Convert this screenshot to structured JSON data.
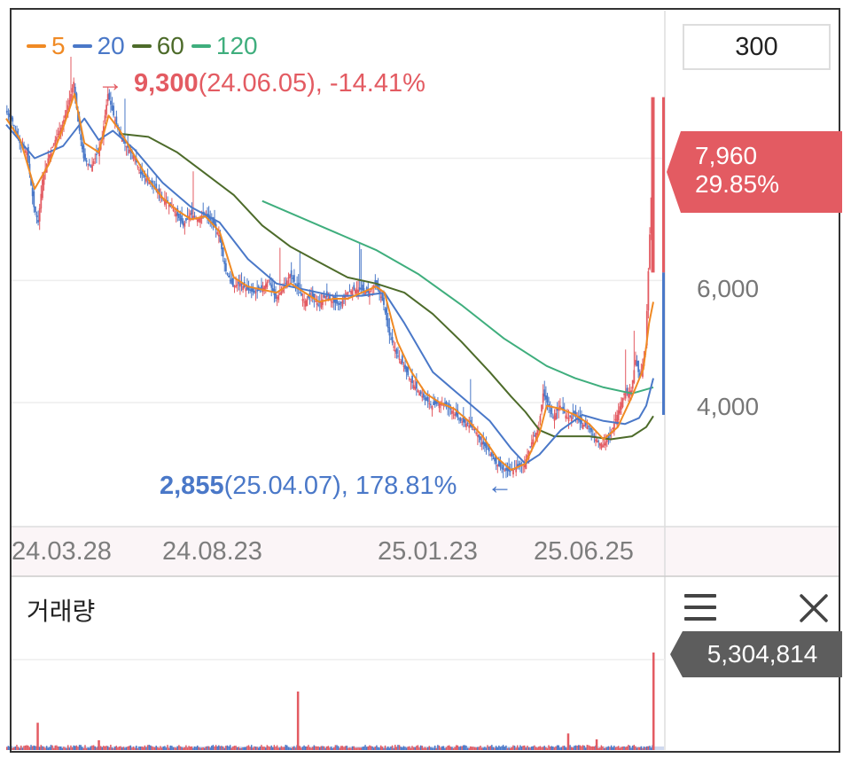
{
  "chart_data": {
    "type": "candlestick",
    "legend": [
      {
        "label": "5",
        "color": "#f08a24"
      },
      {
        "label": "20",
        "color": "#4a78c8"
      },
      {
        "label": "60",
        "color": "#4d6b2a"
      },
      {
        "label": "120",
        "color": "#3fae7d"
      }
    ],
    "ylim": [
      2000,
      10300
    ],
    "y_ticks": [
      "6,000",
      "4,000"
    ],
    "x_ticks": [
      "24.03.28",
      "24.08.23",
      "25.01.23",
      "25.06.25"
    ],
    "high_annotation": {
      "arrow": "→",
      "value": "9,300",
      "date": "(24.06.05)",
      "pct": ", -14.41%"
    },
    "low_annotation": {
      "arrow": "←",
      "value": "2,855",
      "date": "(25.04.07)",
      "pct": ", 178.81%"
    },
    "current_price": {
      "price": "7,960",
      "change": "29.85%"
    },
    "close_path": [
      [
        0,
        8780
      ],
      [
        5,
        8600
      ],
      [
        10,
        8250
      ],
      [
        15,
        8100
      ],
      [
        20,
        7200
      ],
      [
        23,
        6950
      ],
      [
        26,
        7650
      ],
      [
        30,
        8000
      ],
      [
        35,
        8300
      ],
      [
        40,
        8550
      ],
      [
        45,
        8950
      ],
      [
        48,
        9250
      ],
      [
        51,
        8600
      ],
      [
        55,
        8000
      ],
      [
        60,
        7850
      ],
      [
        65,
        8100
      ],
      [
        68,
        8350
      ],
      [
        72,
        9050
      ],
      [
        76,
        8700
      ],
      [
        80,
        8400
      ],
      [
        85,
        8200
      ],
      [
        90,
        8050
      ],
      [
        95,
        7750
      ],
      [
        100,
        7650
      ],
      [
        105,
        7500
      ],
      [
        110,
        7350
      ],
      [
        115,
        7250
      ],
      [
        120,
        7100
      ],
      [
        125,
        6900
      ],
      [
        130,
        7100
      ],
      [
        135,
        7000
      ],
      [
        140,
        7100
      ],
      [
        145,
        6950
      ],
      [
        150,
        6750
      ],
      [
        155,
        6150
      ],
      [
        160,
        5900
      ],
      [
        165,
        5950
      ],
      [
        170,
        5850
      ],
      [
        175,
        5800
      ],
      [
        180,
        5850
      ],
      [
        185,
        6000
      ],
      [
        190,
        5700
      ],
      [
        195,
        5850
      ],
      [
        200,
        6100
      ],
      [
        205,
        5900
      ],
      [
        210,
        5650
      ],
      [
        215,
        5750
      ],
      [
        220,
        5600
      ],
      [
        225,
        5750
      ],
      [
        230,
        5650
      ],
      [
        235,
        5600
      ],
      [
        240,
        5800
      ],
      [
        245,
        5850
      ],
      [
        250,
        5850
      ],
      [
        255,
        5800
      ],
      [
        260,
        5950
      ],
      [
        263,
        5800
      ],
      [
        266,
        5600
      ],
      [
        270,
        5100
      ],
      [
        275,
        4800
      ],
      [
        280,
        4600
      ],
      [
        285,
        4350
      ],
      [
        290,
        4200
      ],
      [
        295,
        4050
      ],
      [
        300,
        3950
      ],
      [
        305,
        4000
      ],
      [
        310,
        3950
      ],
      [
        315,
        3850
      ],
      [
        320,
        3700
      ],
      [
        325,
        3650
      ],
      [
        330,
        3550
      ],
      [
        335,
        3350
      ],
      [
        340,
        3200
      ],
      [
        345,
        3000
      ],
      [
        350,
        2900
      ],
      [
        355,
        2870
      ],
      [
        360,
        2950
      ],
      [
        365,
        3000
      ],
      [
        370,
        3350
      ],
      [
        375,
        3600
      ],
      [
        378,
        4150
      ],
      [
        381,
        4000
      ],
      [
        385,
        3750
      ],
      [
        390,
        3950
      ],
      [
        395,
        3750
      ],
      [
        400,
        3800
      ],
      [
        405,
        3650
      ],
      [
        410,
        3600
      ],
      [
        415,
        3400
      ],
      [
        420,
        3300
      ],
      [
        425,
        3450
      ],
      [
        430,
        3800
      ],
      [
        435,
        4150
      ],
      [
        440,
        4200
      ],
      [
        443,
        4700
      ],
      [
        446,
        4400
      ],
      [
        450,
        4850
      ],
      [
        452,
        6150
      ],
      [
        455,
        7960
      ]
    ],
    "ma5_path": [
      [
        0,
        8650
      ],
      [
        10,
        8300
      ],
      [
        20,
        7500
      ],
      [
        30,
        7900
      ],
      [
        40,
        8500
      ],
      [
        48,
        9050
      ],
      [
        55,
        8250
      ],
      [
        65,
        8100
      ],
      [
        72,
        8700
      ],
      [
        80,
        8450
      ],
      [
        90,
        8050
      ],
      [
        100,
        7650
      ],
      [
        110,
        7350
      ],
      [
        120,
        7150
      ],
      [
        130,
        7000
      ],
      [
        140,
        7050
      ],
      [
        150,
        6800
      ],
      [
        160,
        6050
      ],
      [
        170,
        5900
      ],
      [
        180,
        5850
      ],
      [
        190,
        5800
      ],
      [
        200,
        5950
      ],
      [
        210,
        5800
      ],
      [
        220,
        5650
      ],
      [
        230,
        5700
      ],
      [
        240,
        5700
      ],
      [
        250,
        5800
      ],
      [
        260,
        5900
      ],
      [
        266,
        5800
      ],
      [
        275,
        5000
      ],
      [
        285,
        4500
      ],
      [
        295,
        4150
      ],
      [
        305,
        4000
      ],
      [
        315,
        3900
      ],
      [
        325,
        3700
      ],
      [
        335,
        3450
      ],
      [
        345,
        3100
      ],
      [
        355,
        2900
      ],
      [
        365,
        3000
      ],
      [
        375,
        3500
      ],
      [
        380,
        3950
      ],
      [
        390,
        3900
      ],
      [
        400,
        3800
      ],
      [
        410,
        3650
      ],
      [
        420,
        3400
      ],
      [
        430,
        3600
      ],
      [
        440,
        4100
      ],
      [
        448,
        4550
      ],
      [
        452,
        5300
      ],
      [
        455,
        5650
      ]
    ],
    "ma20_path": [
      [
        0,
        8550
      ],
      [
        20,
        8000
      ],
      [
        40,
        8200
      ],
      [
        55,
        8650
      ],
      [
        65,
        8300
      ],
      [
        75,
        8450
      ],
      [
        90,
        8150
      ],
      [
        110,
        7600
      ],
      [
        130,
        7200
      ],
      [
        150,
        6950
      ],
      [
        170,
        6350
      ],
      [
        190,
        5950
      ],
      [
        210,
        5850
      ],
      [
        230,
        5750
      ],
      [
        250,
        5750
      ],
      [
        266,
        5800
      ],
      [
        280,
        5300
      ],
      [
        300,
        4500
      ],
      [
        320,
        4100
      ],
      [
        340,
        3700
      ],
      [
        355,
        3250
      ],
      [
        365,
        3000
      ],
      [
        375,
        3150
      ],
      [
        390,
        3550
      ],
      [
        405,
        3800
      ],
      [
        420,
        3700
      ],
      [
        435,
        3650
      ],
      [
        445,
        3750
      ],
      [
        450,
        3950
      ],
      [
        455,
        4400
      ]
    ],
    "ma60_path": [
      [
        80,
        8400
      ],
      [
        100,
        8350
      ],
      [
        120,
        8100
      ],
      [
        140,
        7750
      ],
      [
        160,
        7400
      ],
      [
        180,
        6900
      ],
      [
        200,
        6550
      ],
      [
        220,
        6300
      ],
      [
        240,
        6050
      ],
      [
        260,
        5950
      ],
      [
        280,
        5800
      ],
      [
        300,
        5450
      ],
      [
        320,
        5000
      ],
      [
        340,
        4500
      ],
      [
        355,
        4100
      ],
      [
        365,
        3850
      ],
      [
        375,
        3550
      ],
      [
        385,
        3450
      ],
      [
        395,
        3450
      ],
      [
        410,
        3450
      ],
      [
        425,
        3400
      ],
      [
        440,
        3450
      ],
      [
        450,
        3600
      ],
      [
        455,
        3780
      ]
    ],
    "ma120_path": [
      [
        180,
        7300
      ],
      [
        220,
        6900
      ],
      [
        260,
        6500
      ],
      [
        290,
        6100
      ],
      [
        320,
        5600
      ],
      [
        350,
        5050
      ],
      [
        380,
        4600
      ],
      [
        400,
        4400
      ],
      [
        420,
        4250
      ],
      [
        440,
        4150
      ],
      [
        455,
        4250
      ]
    ],
    "volume": {
      "label": "거래량",
      "current": "5,304,814",
      "spikes": [
        [
          22,
          0.28
        ],
        [
          65,
          0.1
        ],
        [
          205,
          0.6
        ],
        [
          395,
          0.17
        ],
        [
          415,
          0.11
        ],
        [
          455,
          1.0
        ]
      ]
    }
  },
  "ui": {
    "period": "300"
  },
  "colors": {
    "up": "#e35b62",
    "down": "#4a78c8",
    "grid": "#eeeeee"
  }
}
